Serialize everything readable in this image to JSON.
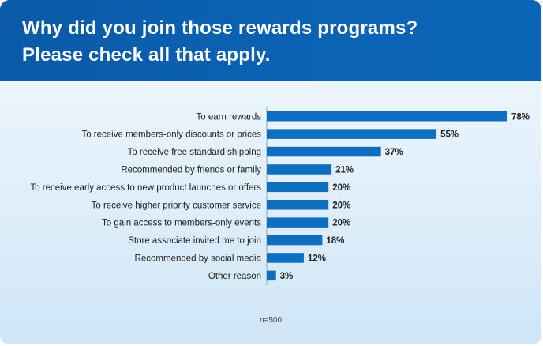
{
  "header": {
    "title_line1": "Why did you join those rewards programs?",
    "title_line2": "Please check all that apply."
  },
  "note": "n=500",
  "colors": {
    "header_bg": "#0b63b4",
    "bar": "#0e6fc1",
    "text": "#222222"
  },
  "chart_data": {
    "type": "bar",
    "orientation": "horizontal",
    "categories": [
      "To earn rewards",
      "To receive members-only discounts or prices",
      "To receive free standard shipping",
      "Recommended by friends or family",
      "To receive early access to new product launches or offers",
      "To receive higher priority customer service",
      "To gain access to members-only events",
      "Store associate invited me to join",
      "Recommended by social media",
      "Other reason"
    ],
    "values": [
      78,
      55,
      37,
      21,
      20,
      20,
      20,
      18,
      12,
      3
    ],
    "data_labels": [
      "78%",
      "55%",
      "37%",
      "21%",
      "20%",
      "20%",
      "20%",
      "18%",
      "12%",
      "3%"
    ],
    "xlim": [
      0,
      78
    ],
    "grid": false,
    "legend": "none"
  }
}
